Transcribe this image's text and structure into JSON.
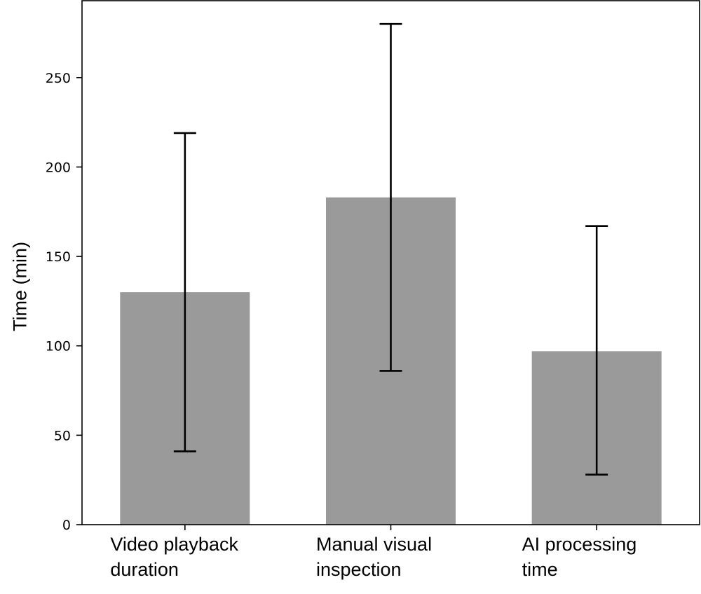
{
  "chart_data": {
    "type": "bar",
    "title": "",
    "xlabel": "",
    "ylabel": "Time (min)",
    "ylim": [
      0,
      293
    ],
    "yticks": [
      0,
      50,
      100,
      150,
      200,
      250
    ],
    "categories": [
      [
        "Video playback",
        "duration"
      ],
      [
        "Manual visual",
        "inspection"
      ],
      [
        "AI processing",
        "time"
      ]
    ],
    "values": [
      130,
      183,
      97
    ],
    "error_low": [
      41,
      86,
      28
    ],
    "error_high": [
      219,
      280,
      167
    ],
    "grid": false,
    "legend": "none",
    "colors": {
      "bar": "#9a9a9a",
      "error": "#000000",
      "axis": "#000000"
    }
  }
}
